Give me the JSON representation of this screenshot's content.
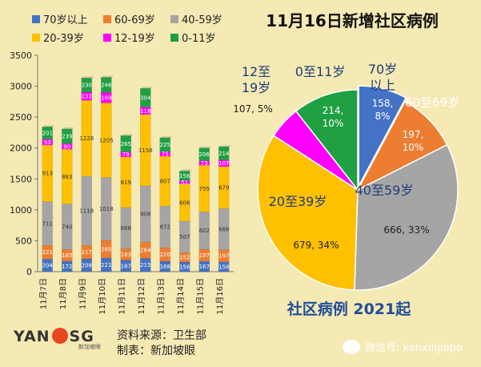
{
  "title": "11月16日新增社区病例",
  "pie_caption": "社区病例 2021起",
  "legend": [
    {
      "label": "70岁以上",
      "color": "#4472c4"
    },
    {
      "label": "60-69岁",
      "color": "#ed7d31"
    },
    {
      "label": "40-59岁",
      "color": "#a5a5a5"
    },
    {
      "label": "20-39岁",
      "color": "#ffc000"
    },
    {
      "label": "12-19岁",
      "color": "#ff00ff"
    },
    {
      "label": "0-11岁",
      "color": "#1fa043"
    }
  ],
  "footer": {
    "logo_left": "YAN",
    "logo_right": "SG",
    "logo_tag": "新加坡眼",
    "source_line": "资料来源：卫生部",
    "maker_line": "制表：新加坡眼",
    "wechat": "微信号: kanxinjiapo"
  },
  "chart_data": [
    {
      "type": "bar",
      "stacked": true,
      "categories": [
        "11月7日",
        "11月8日",
        "11月9日",
        "11月10日",
        "11月11日",
        "11月12日",
        "11月13日",
        "11月14日",
        "11月15日",
        "11月16日"
      ],
      "ylim": [
        0,
        3500
      ],
      "yticks": [
        0,
        500,
        1000,
        1500,
        2000,
        2500,
        3000,
        3500
      ],
      "grid": false,
      "series": [
        {
          "name": "70岁以上",
          "color": "#4472c4",
          "values": [
            204,
            172,
            208,
            221,
            187,
            215,
            168,
            156,
            167,
            158
          ]
        },
        {
          "name": "60-69岁",
          "color": "#ed7d31",
          "values": [
            221,
            185,
            217,
            285,
            183,
            264,
            220,
            152,
            197,
            197
          ]
        },
        {
          "name": "40-59岁",
          "color": "#a5a5a5",
          "values": [
            711,
            740,
            1118,
            1018,
            668,
            908,
            672,
            507,
            602,
            666
          ]
        },
        {
          "name": "20-39岁",
          "color": "#ffc000",
          "values": [
            913,
            883,
            1228,
            1205,
            819,
            1156,
            807,
            606,
            755,
            679
          ]
        },
        {
          "name": "12-19岁",
          "color": "#ff00ff",
          "values": [
            93,
            90,
            132,
            169,
            79,
            118,
            75,
            51,
            73,
            107
          ]
        },
        {
          "name": "0-11岁",
          "color": "#1fa043",
          "values": [
            201,
            239,
            230,
            246,
            265,
            304,
            225,
            156,
            206,
            214
          ]
        }
      ]
    },
    {
      "type": "pie",
      "title": "11月16日新增社区病例",
      "slices": [
        {
          "label": "70岁以上",
          "value": 158,
          "percent": "8%",
          "color": "#4472c4",
          "outer_label": "70岁\n以上",
          "value_text": "158,\n8%"
        },
        {
          "label": "60至69岁",
          "value": 197,
          "percent": "10%",
          "color": "#ed7d31",
          "outer_label": "60至69岁",
          "value_text": "197,\n10%"
        },
        {
          "label": "40至59岁",
          "value": 666,
          "percent": "33%",
          "color": "#a5a5a5",
          "outer_label": "40至59岁",
          "value_text": "666, 33%"
        },
        {
          "label": "20至39岁",
          "value": 679,
          "percent": "34%",
          "color": "#ffc000",
          "outer_label": "20至39岁",
          "value_text": "679, 34%"
        },
        {
          "label": "12至19岁",
          "value": 107,
          "percent": "5%",
          "color": "#ff00ff",
          "outer_label": "12至\n19岁",
          "value_text": "107, 5%"
        },
        {
          "label": "0至11岁",
          "value": 214,
          "percent": "10%",
          "color": "#1fa043",
          "outer_label": "0至11岁",
          "value_text": "214,\n10%"
        }
      ]
    }
  ]
}
